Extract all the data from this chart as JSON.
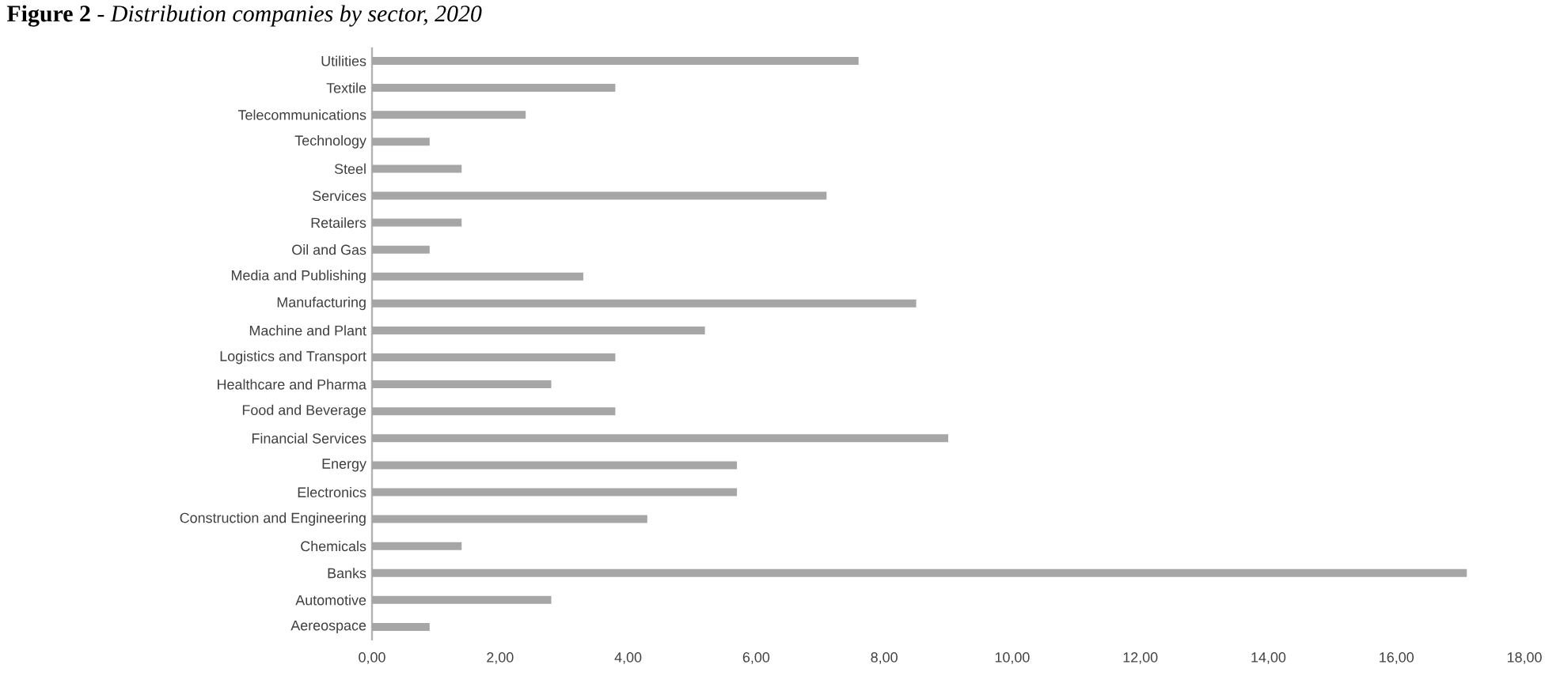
{
  "chart_data": {
    "type": "bar",
    "orientation": "horizontal",
    "title": "**Figure 2** - *Distribution companies by sector, 2020*",
    "categories": [
      "Utilities",
      "Textile",
      "Telecommunications",
      "Technology",
      "Steel",
      "Services",
      "Retailers",
      "Oil and Gas",
      "Media and Publishing",
      "Manufacturing",
      "Machine and Plant",
      "Logistics and Transport",
      "Healthcare and Pharma",
      "Food and Beverage",
      "Financial Services",
      "Energy",
      "Electronics",
      "Construction and Engineering",
      "Chemicals",
      "Banks",
      "Automotive",
      "Aereospace"
    ],
    "values": [
      7.6,
      3.8,
      2.4,
      0.9,
      1.4,
      7.1,
      1.4,
      0.9,
      3.3,
      8.5,
      5.2,
      3.8,
      2.8,
      3.8,
      9.0,
      5.7,
      5.7,
      4.3,
      1.4,
      17.1,
      2.8,
      0.9
    ],
    "color": "#a6a6a6",
    "xlim": [
      0,
      18
    ],
    "xticks": [
      {
        "value": 0,
        "label": "0,00"
      },
      {
        "value": 2,
        "label": "2,00"
      },
      {
        "value": 4,
        "label": "4,00"
      },
      {
        "value": 6,
        "label": "6,00"
      },
      {
        "value": 8,
        "label": "8,00"
      },
      {
        "value": 10,
        "label": "10,00"
      },
      {
        "value": 12,
        "label": "12,00"
      },
      {
        "value": 14,
        "label": "14,00"
      },
      {
        "value": 16,
        "label": "16,00"
      },
      {
        "value": 18,
        "label": "18,00"
      }
    ],
    "grid": false
  }
}
